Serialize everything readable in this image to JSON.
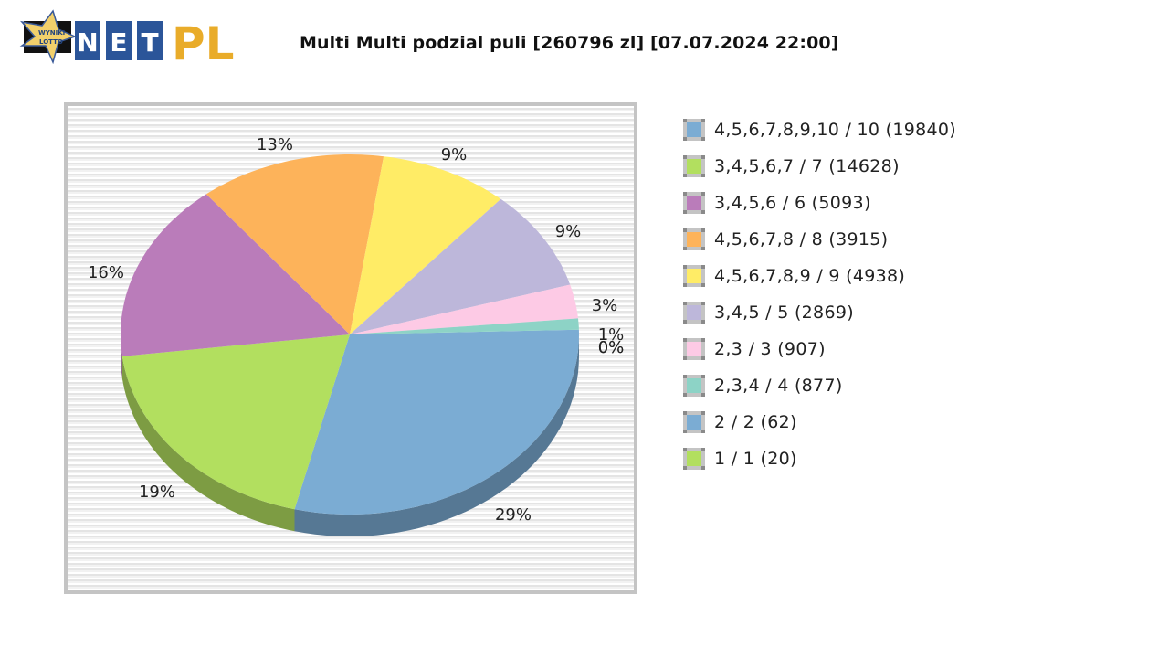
{
  "header": {
    "logo": {
      "star_text_line1": "WYNIKI",
      "star_text_line2": "LOTTO",
      "letters": [
        "N",
        "E",
        "T"
      ],
      "suffix": "PL"
    },
    "title": "Multi Multi podzial puli [260796 zl] [07.07.2024 22:00]"
  },
  "legend": {
    "items": [
      {
        "label": "4,5,6,7,8,9,10 / 10 (19840)",
        "color": "#7bacd3"
      },
      {
        "label": "3,4,5,6,7 / 7 (14628)",
        "color": "#b2df5f"
      },
      {
        "label": "3,4,5,6 / 6 (5093)",
        "color": "#ba7cba"
      },
      {
        "label": "4,5,6,7,8 / 8 (3915)",
        "color": "#fdb35a"
      },
      {
        "label": "4,5,6,7,8,9 / 9 (4938)",
        "color": "#ffec66"
      },
      {
        "label": "3,4,5 / 5 (2869)",
        "color": "#bdb7da"
      },
      {
        "label": "2,3 / 3 (907)",
        "color": "#fdcae5"
      },
      {
        "label": "2,3,4 / 4 (877)",
        "color": "#8dd3c6"
      },
      {
        "label": "2 / 2 (62)",
        "color": "#7bacd3"
      },
      {
        "label": "1 / 1 (20)",
        "color": "#b2df5f"
      }
    ]
  },
  "chart_data": {
    "type": "pie",
    "title": "Multi Multi podzial puli [260796 zl] [07.07.2024 22:00]",
    "style": "3d",
    "legend_position": "right",
    "categories": [
      "4,5,6,7,8,9,10 / 10 (19840)",
      "3,4,5,6,7 / 7 (14628)",
      "3,4,5,6 / 6 (5093)",
      "4,5,6,7,8 / 8 (3915)",
      "4,5,6,7,8,9 / 9 (4938)",
      "3,4,5 / 5 (2869)",
      "2,3 / 3 (907)",
      "2,3,4 / 4 (877)",
      "2 / 2 (62)",
      "1 / 1 (20)"
    ],
    "values": [
      29,
      19,
      16,
      13,
      9,
      9,
      3,
      1,
      0,
      0
    ],
    "value_labels": [
      "29%",
      "19%",
      "16%",
      "13%",
      "9%",
      "9%",
      "3%",
      "1%",
      "0%",
      "0%"
    ],
    "colors": [
      "#7bacd3",
      "#b2df5f",
      "#ba7cba",
      "#fdb35a",
      "#ffec66",
      "#bdb7da",
      "#fdcae5",
      "#8dd3c6",
      "#7bacd3",
      "#b2df5f"
    ]
  }
}
